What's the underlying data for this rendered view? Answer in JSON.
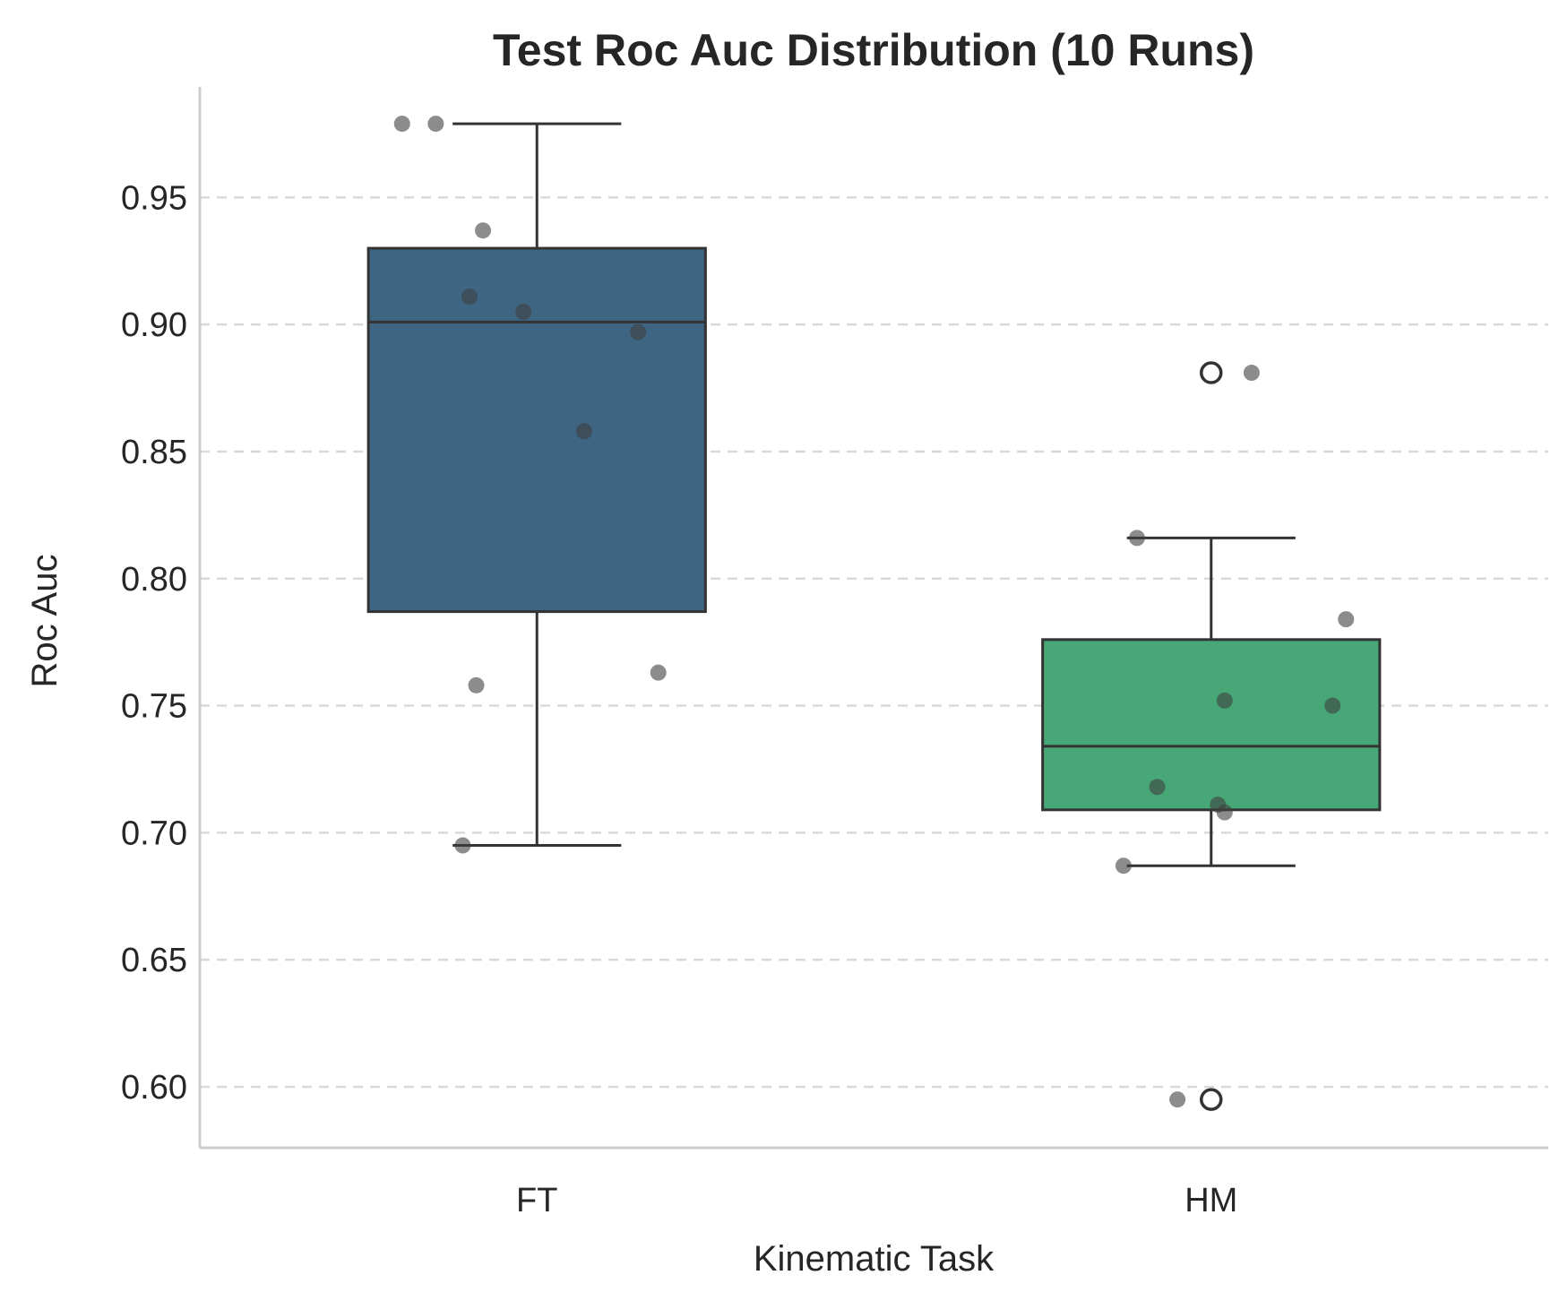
{
  "chart_data": {
    "type": "box",
    "title": "Test Roc Auc Distribution (10 Runs)",
    "xlabel": "Kinematic Task",
    "ylabel": "Roc Auc",
    "ylim": [
      0.576,
      0.9935
    ],
    "yticks": [
      0.6,
      0.65,
      0.7,
      0.75,
      0.8,
      0.85,
      0.9,
      0.95
    ],
    "ytick_labels": [
      "0.60",
      "0.65",
      "0.70",
      "0.75",
      "0.80",
      "0.85",
      "0.90",
      "0.95"
    ],
    "grid": "horizontal dashed",
    "categories": [
      "FT",
      "HM"
    ],
    "series": [
      {
        "category": "FT",
        "color": "#3e6582",
        "q1": 0.787,
        "median": 0.901,
        "q3": 0.93,
        "whisker_low": 0.695,
        "whisker_high": 0.979,
        "outliers": [],
        "points": [
          {
            "jitter": -0.2,
            "value": 0.979
          },
          {
            "jitter": -0.15,
            "value": 0.979
          },
          {
            "jitter": -0.08,
            "value": 0.937
          },
          {
            "jitter": -0.1,
            "value": 0.911
          },
          {
            "jitter": -0.02,
            "value": 0.905
          },
          {
            "jitter": 0.15,
            "value": 0.897
          },
          {
            "jitter": 0.07,
            "value": 0.858
          },
          {
            "jitter": 0.18,
            "value": 0.763
          },
          {
            "jitter": -0.09,
            "value": 0.758
          },
          {
            "jitter": -0.11,
            "value": 0.695
          }
        ]
      },
      {
        "category": "HM",
        "color": "#47a776",
        "q1": 0.709,
        "median": 0.734,
        "q3": 0.776,
        "whisker_low": 0.687,
        "whisker_high": 0.816,
        "outliers": [
          0.881,
          0.595
        ],
        "points": [
          {
            "jitter": 0.06,
            "value": 0.881
          },
          {
            "jitter": -0.11,
            "value": 0.816
          },
          {
            "jitter": 0.2,
            "value": 0.784
          },
          {
            "jitter": 0.02,
            "value": 0.752
          },
          {
            "jitter": 0.18,
            "value": 0.75
          },
          {
            "jitter": -0.08,
            "value": 0.718
          },
          {
            "jitter": 0.01,
            "value": 0.711
          },
          {
            "jitter": 0.02,
            "value": 0.708
          },
          {
            "jitter": -0.13,
            "value": 0.687
          },
          {
            "jitter": -0.05,
            "value": 0.595
          }
        ]
      }
    ]
  }
}
